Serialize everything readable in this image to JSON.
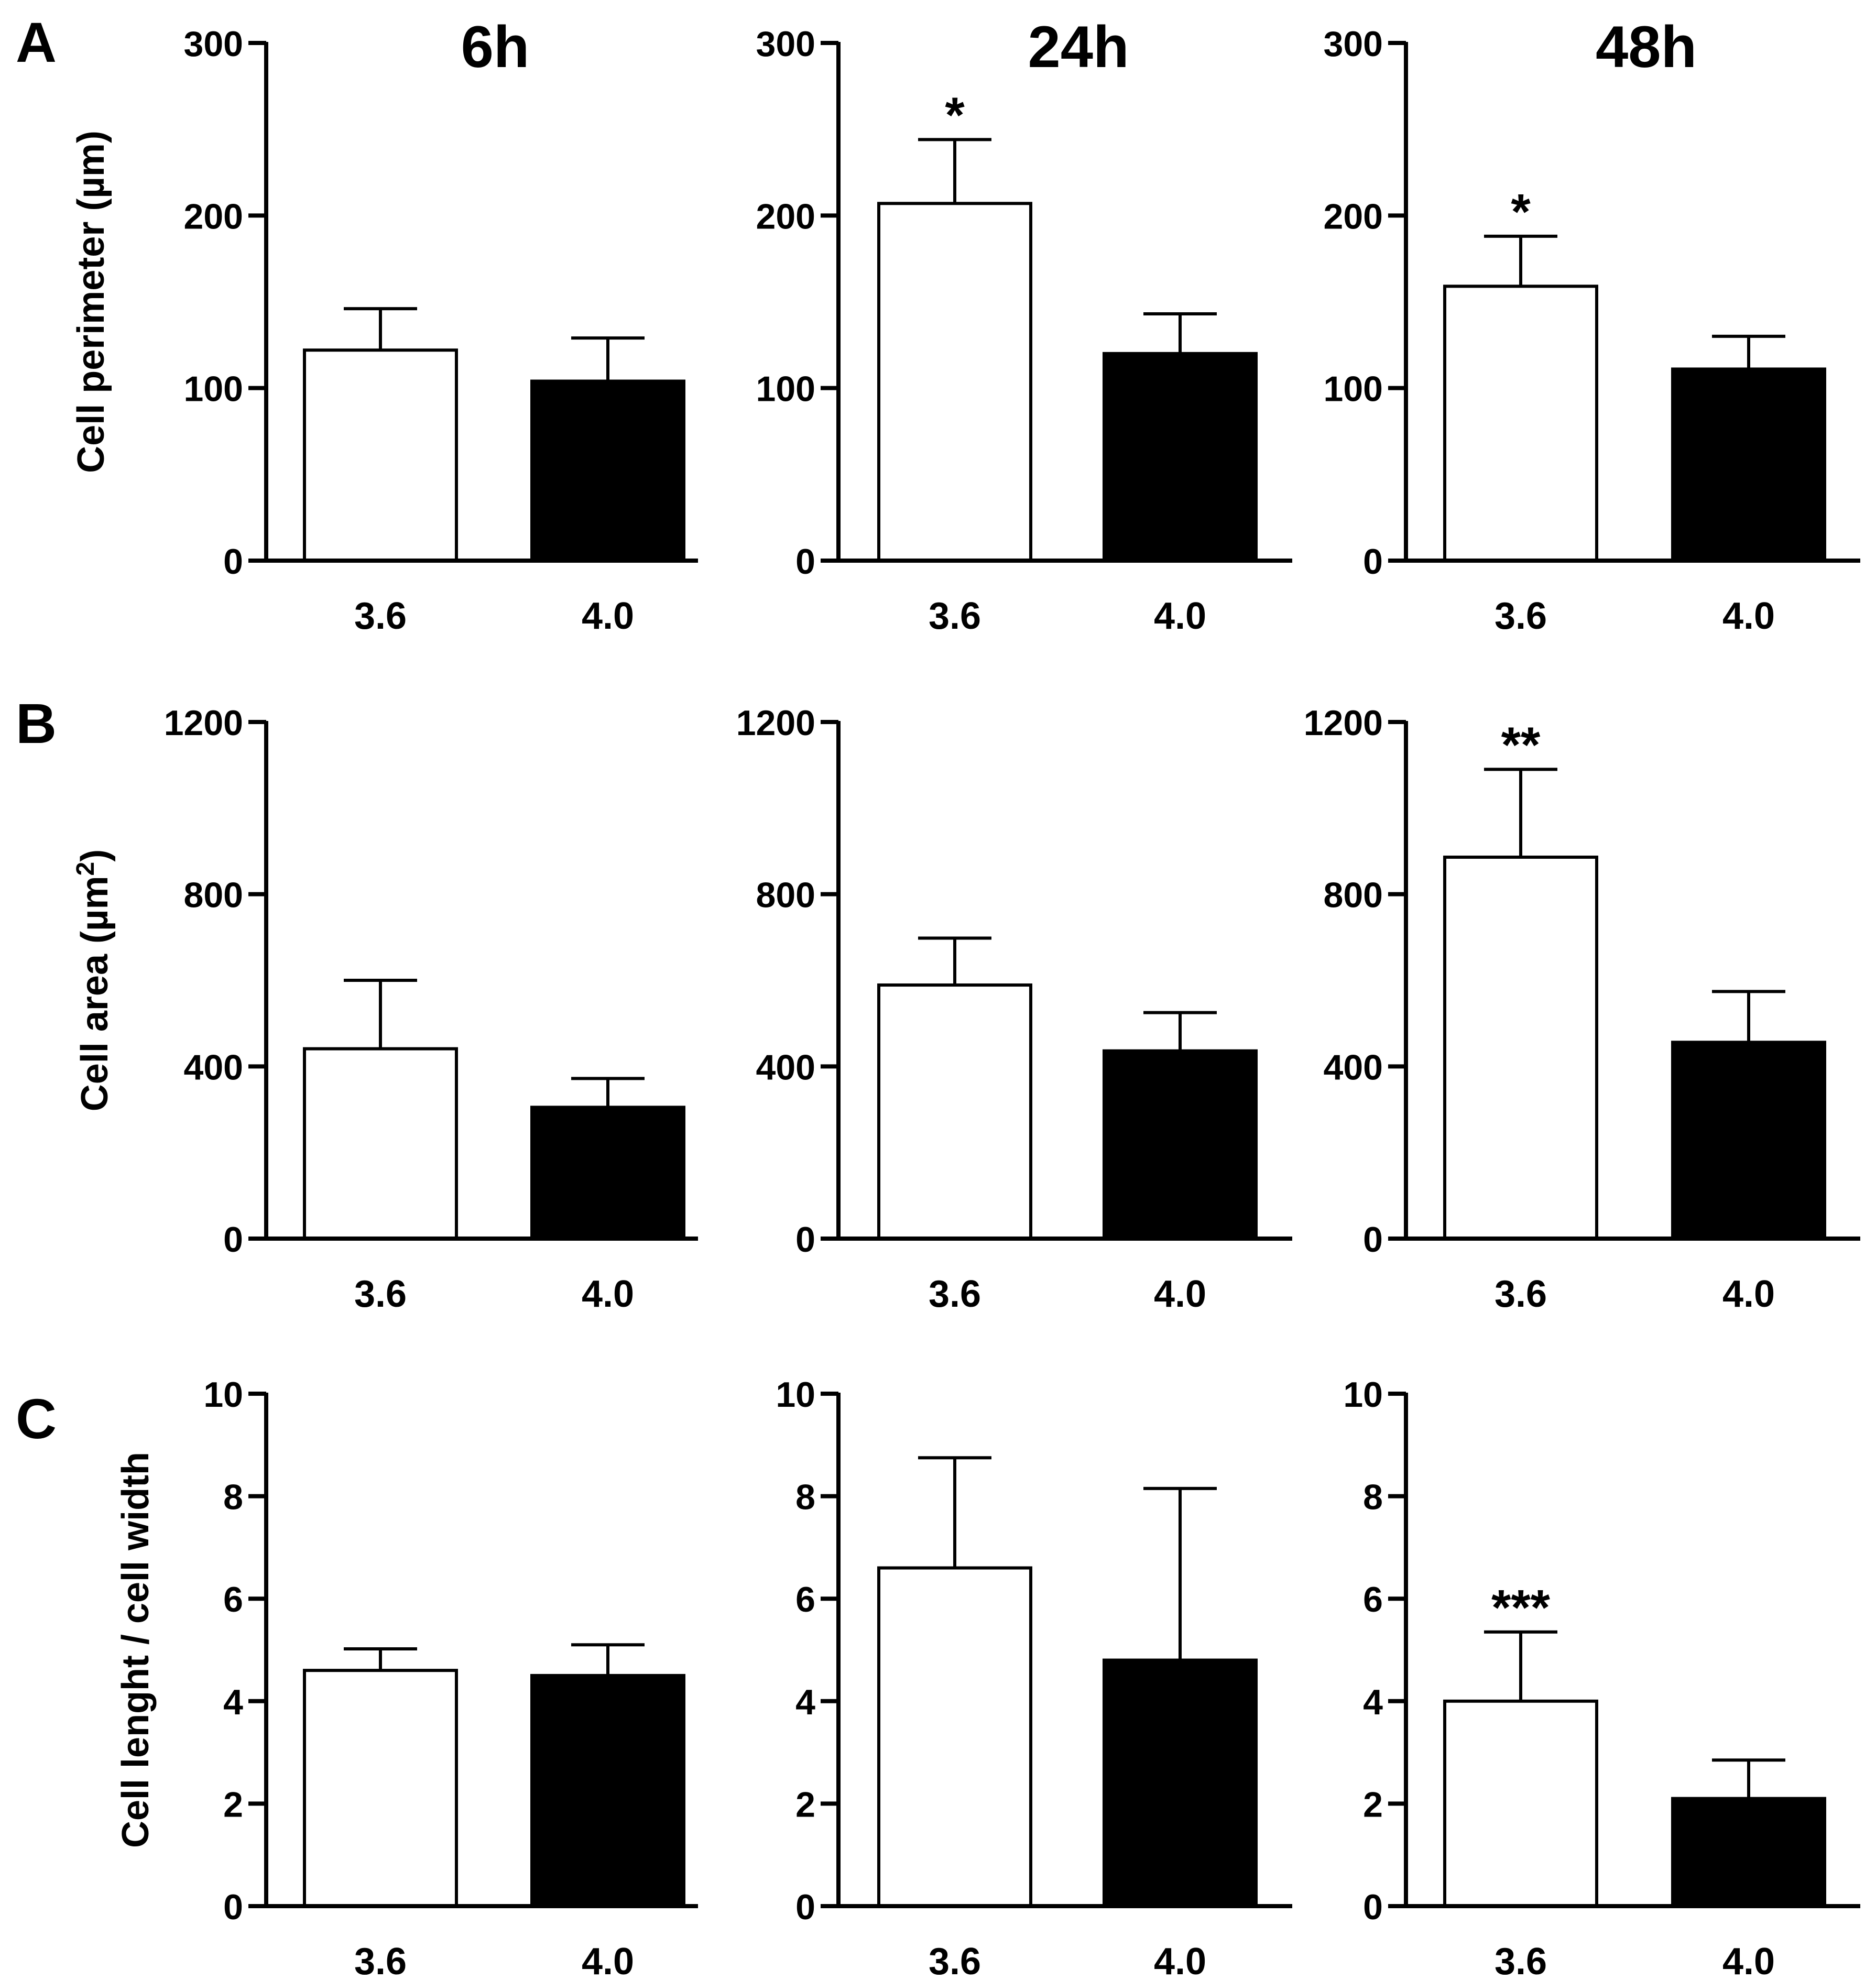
{
  "figure": {
    "row_letters": [
      "A",
      "B",
      "C"
    ],
    "time_labels": [
      "6h",
      "24h",
      "48h"
    ]
  },
  "colors": {
    "bar_low_ph": "#ffffff",
    "bar_high_ph": "#000000",
    "axis": "#000000"
  },
  "chart_data": [
    {
      "type": "bar",
      "row": "A",
      "time": "6h",
      "title": "6h",
      "ylabel": "Cell perimeter (µm)",
      "ylim": [
        0,
        300
      ],
      "yticks": [
        0,
        100,
        200,
        300
      ],
      "ytick_labels": [
        "0",
        "100",
        "200",
        "300"
      ],
      "categories": [
        "3.6",
        "4.0"
      ],
      "values": [
        122,
        104
      ],
      "errors": [
        24,
        25
      ],
      "significance": [
        "",
        ""
      ]
    },
    {
      "type": "bar",
      "row": "A",
      "time": "24h",
      "title": "24h",
      "ylabel": "",
      "ylim": [
        0,
        300
      ],
      "yticks": [
        0,
        100,
        200,
        300
      ],
      "ytick_labels": [
        "0",
        "100",
        "200",
        "300"
      ],
      "categories": [
        "3.6",
        "4.0"
      ],
      "values": [
        207,
        120
      ],
      "errors": [
        37,
        23
      ],
      "significance": [
        "*",
        ""
      ]
    },
    {
      "type": "bar",
      "row": "A",
      "time": "48h",
      "title": "48h",
      "ylabel": "",
      "ylim": [
        0,
        300
      ],
      "yticks": [
        0,
        100,
        200,
        300
      ],
      "ytick_labels": [
        "0",
        "100",
        "200",
        "300"
      ],
      "categories": [
        "3.6",
        "4.0"
      ],
      "values": [
        159,
        111
      ],
      "errors": [
        29,
        19
      ],
      "significance": [
        "*",
        ""
      ]
    },
    {
      "type": "bar",
      "row": "B",
      "time": "6h",
      "title": "",
      "ylabel": "Cell area (µm2)",
      "ylim": [
        0,
        1200
      ],
      "yticks": [
        0,
        400,
        800,
        1200
      ],
      "ytick_labels": [
        "0",
        "400",
        "800",
        "1200"
      ],
      "categories": [
        "3.6",
        "4.0"
      ],
      "values": [
        441,
        305
      ],
      "errors": [
        159,
        67
      ],
      "significance": [
        "",
        ""
      ]
    },
    {
      "type": "bar",
      "row": "B",
      "time": "24h",
      "title": "",
      "ylabel": "",
      "ylim": [
        0,
        1200
      ],
      "yticks": [
        0,
        400,
        800,
        1200
      ],
      "ytick_labels": [
        "0",
        "400",
        "800",
        "1200"
      ],
      "categories": [
        "3.6",
        "4.0"
      ],
      "values": [
        589,
        436
      ],
      "errors": [
        109,
        89
      ],
      "significance": [
        "",
        ""
      ]
    },
    {
      "type": "bar",
      "row": "B",
      "time": "48h",
      "title": "",
      "ylabel": "",
      "ylim": [
        0,
        1200
      ],
      "yticks": [
        0,
        400,
        800,
        1200
      ],
      "ytick_labels": [
        "0",
        "400",
        "800",
        "1200"
      ],
      "categories": [
        "3.6",
        "4.0"
      ],
      "values": [
        886,
        456
      ],
      "errors": [
        204,
        118
      ],
      "significance": [
        "**",
        ""
      ]
    },
    {
      "type": "bar",
      "row": "C",
      "time": "6h",
      "title": "",
      "ylabel": "Cell lenght / cell width",
      "ylim": [
        0,
        10
      ],
      "yticks": [
        0,
        2,
        4,
        6,
        8,
        10
      ],
      "ytick_labels": [
        "0",
        "2",
        "4",
        "6",
        "8",
        "10"
      ],
      "categories": [
        "3.6",
        "4.0"
      ],
      "values": [
        4.6,
        4.5
      ],
      "errors": [
        0.42,
        0.6
      ],
      "significance": [
        "",
        ""
      ]
    },
    {
      "type": "bar",
      "row": "C",
      "time": "24h",
      "title": "",
      "ylabel": "",
      "ylim": [
        0,
        10
      ],
      "yticks": [
        0,
        2,
        4,
        6,
        8,
        10
      ],
      "ytick_labels": [
        "0",
        "2",
        "4",
        "6",
        "8",
        "10"
      ],
      "categories": [
        "3.6",
        "4.0"
      ],
      "values": [
        6.6,
        4.8
      ],
      "errors": [
        2.15,
        3.35
      ],
      "significance": [
        "",
        ""
      ]
    },
    {
      "type": "bar",
      "row": "C",
      "time": "48h",
      "title": "",
      "ylabel": "",
      "ylim": [
        0,
        10
      ],
      "yticks": [
        0,
        2,
        4,
        6,
        8,
        10
      ],
      "ytick_labels": [
        "0",
        "2",
        "4",
        "6",
        "8",
        "10"
      ],
      "categories": [
        "3.6",
        "4.0"
      ],
      "values": [
        4.0,
        2.1
      ],
      "errors": [
        1.35,
        0.75
      ],
      "significance": [
        "***",
        ""
      ]
    }
  ]
}
